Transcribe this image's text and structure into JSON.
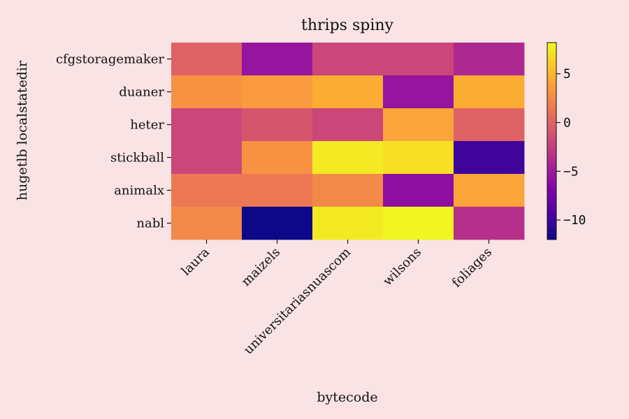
{
  "chart_data": {
    "type": "heatmap",
    "title": "thrips spiny",
    "xlabel": "bytecode",
    "ylabel": "hugetlb localstatedir",
    "x_categories": [
      "laura",
      "maizels",
      "universitariasnuascom",
      "wilsons",
      "foliages"
    ],
    "y_categories": [
      "cfgstoragemaker",
      "duaner",
      "heter",
      "stickball",
      "animalx",
      "nabl"
    ],
    "values": [
      [
        0.0,
        -5.5,
        -2.0,
        -2.0,
        -4.0
      ],
      [
        3.0,
        3.5,
        4.5,
        -5.5,
        4.5
      ],
      [
        -2.0,
        -1.0,
        -2.0,
        4.0,
        0.0
      ],
      [
        -2.0,
        3.0,
        7.5,
        7.0,
        -10.0
      ],
      [
        1.5,
        1.5,
        2.5,
        -6.0,
        4.0
      ],
      [
        2.5,
        -12.0,
        7.5,
        8.0,
        -3.5
      ]
    ],
    "colorscale": "plasma",
    "vmin": -12.0,
    "vmax": 8.2,
    "colorbar_ticks": [
      5,
      0,
      -5,
      -10
    ],
    "colorbar_tick_labels": [
      "5",
      "0",
      "−5",
      "−10"
    ],
    "colors": {
      "background": "#f9e3e4"
    }
  }
}
